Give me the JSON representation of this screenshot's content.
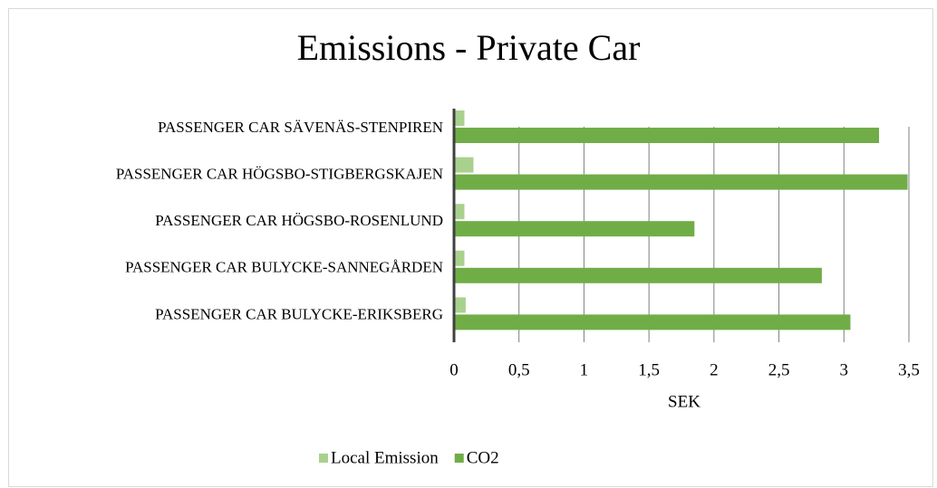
{
  "chart_data": {
    "type": "hbar",
    "title": "Emissions - Private Car",
    "x_label": "SEK",
    "categories": [
      "PASSENGER CAR SÄVENÄS-STENPIREN",
      "PASSENGER CAR HÖGSBO-STIGBERGSKAJEN",
      "PASSENGER CAR HÖGSBO-ROSENLUND",
      "PASSENGER CAR BULYCKE-SANNEGÅRDEN",
      "PASSENGER CAR BULYCKE-ERIKSBERG"
    ],
    "series": [
      {
        "name": "Local Emission",
        "color": "#a9d18e",
        "values": [
          0.08,
          0.15,
          0.08,
          0.08,
          0.09
        ]
      },
      {
        "name": "CO2",
        "color": "#70ad47",
        "values": [
          3.27,
          3.49,
          1.85,
          2.83,
          3.05
        ]
      }
    ],
    "xlim": [
      0,
      3.5
    ],
    "xticks": [
      0,
      {
        "value": 0.5,
        "label": "0,5"
      },
      1,
      {
        "value": 1.5,
        "label": "1,5"
      },
      2,
      {
        "value": 2.5,
        "label": "2,5"
      },
      3,
      {
        "value": 3.5,
        "label": "3,5"
      }
    ],
    "grid": true,
    "legend": "bottom"
  }
}
